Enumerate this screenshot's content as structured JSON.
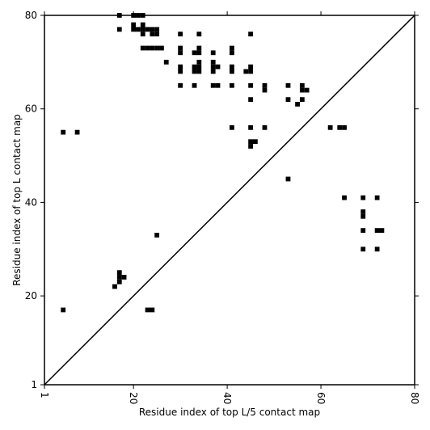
{
  "chart_data": {
    "type": "heatmap",
    "xlabel": "Residue index of top L/5 contact map",
    "ylabel": "Residue index of top L contact map",
    "xlim": [
      1,
      80
    ],
    "ylim": [
      1,
      80
    ],
    "x_ticks": [
      1,
      20,
      40,
      60,
      80
    ],
    "y_ticks": [
      1,
      20,
      40,
      60,
      80
    ],
    "x_tick_labels": [
      "1",
      "20",
      "40",
      "60",
      "80"
    ],
    "y_tick_labels": [
      "1",
      "20",
      "40",
      "60",
      "80"
    ],
    "diagonal": true,
    "grid": false,
    "colors": {
      "contact": "#000000",
      "background": "#ffffff",
      "frame": "#000000"
    },
    "upper_triangle_contacts": [
      [
        17,
        80
      ],
      [
        20,
        80
      ],
      [
        21,
        80
      ],
      [
        22,
        80
      ],
      [
        17,
        77
      ],
      [
        20,
        78
      ],
      [
        20,
        77
      ],
      [
        21,
        77
      ],
      [
        22,
        78
      ],
      [
        22,
        77
      ],
      [
        23,
        77
      ],
      [
        24,
        77
      ],
      [
        25,
        77
      ],
      [
        22,
        76
      ],
      [
        24,
        76
      ],
      [
        25,
        76
      ],
      [
        30,
        76
      ],
      [
        34,
        76
      ],
      [
        45,
        76
      ],
      [
        22,
        73
      ],
      [
        23,
        73
      ],
      [
        24,
        73
      ],
      [
        25,
        73
      ],
      [
        26,
        73
      ],
      [
        30,
        73
      ],
      [
        30,
        72
      ],
      [
        33,
        72
      ],
      [
        34,
        73
      ],
      [
        34,
        72
      ],
      [
        37,
        72
      ],
      [
        41,
        73
      ],
      [
        41,
        72
      ],
      [
        27,
        70
      ],
      [
        34,
        70
      ],
      [
        37,
        70
      ],
      [
        30,
        69
      ],
      [
        30,
        68
      ],
      [
        33,
        69
      ],
      [
        34,
        69
      ],
      [
        33,
        68
      ],
      [
        34,
        68
      ],
      [
        37,
        69
      ],
      [
        37,
        68
      ],
      [
        38,
        69
      ],
      [
        41,
        69
      ],
      [
        41,
        68
      ],
      [
        44,
        68
      ],
      [
        45,
        69
      ],
      [
        45,
        68
      ],
      [
        30,
        65
      ],
      [
        33,
        65
      ],
      [
        37,
        65
      ],
      [
        38,
        65
      ],
      [
        41,
        65
      ],
      [
        45,
        65
      ],
      [
        48,
        65
      ],
      [
        48,
        64
      ],
      [
        53,
        65
      ],
      [
        56,
        65
      ],
      [
        56,
        64
      ],
      [
        57,
        64
      ],
      [
        45,
        62
      ],
      [
        53,
        62
      ],
      [
        55,
        61
      ],
      [
        56,
        62
      ],
      [
        5,
        55
      ],
      [
        8,
        55
      ],
      [
        41,
        56
      ],
      [
        45,
        56
      ],
      [
        48,
        56
      ],
      [
        62,
        56
      ],
      [
        64,
        56
      ],
      [
        65,
        56
      ],
      [
        45,
        53
      ],
      [
        46,
        53
      ],
      [
        45,
        52
      ],
      [
        53,
        45
      ]
    ],
    "lower_triangle_contacts": [
      [
        65,
        41
      ],
      [
        69,
        41
      ],
      [
        72,
        41
      ],
      [
        69,
        38
      ],
      [
        69,
        37
      ],
      [
        69,
        34
      ],
      [
        72,
        34
      ],
      [
        73,
        34
      ],
      [
        69,
        30
      ],
      [
        72,
        30
      ],
      [
        25,
        33
      ],
      [
        17,
        25
      ],
      [
        17,
        24
      ],
      [
        18,
        24
      ],
      [
        17,
        23
      ],
      [
        16,
        22
      ],
      [
        5,
        17
      ],
      [
        23,
        17
      ],
      [
        24,
        17
      ]
    ]
  }
}
